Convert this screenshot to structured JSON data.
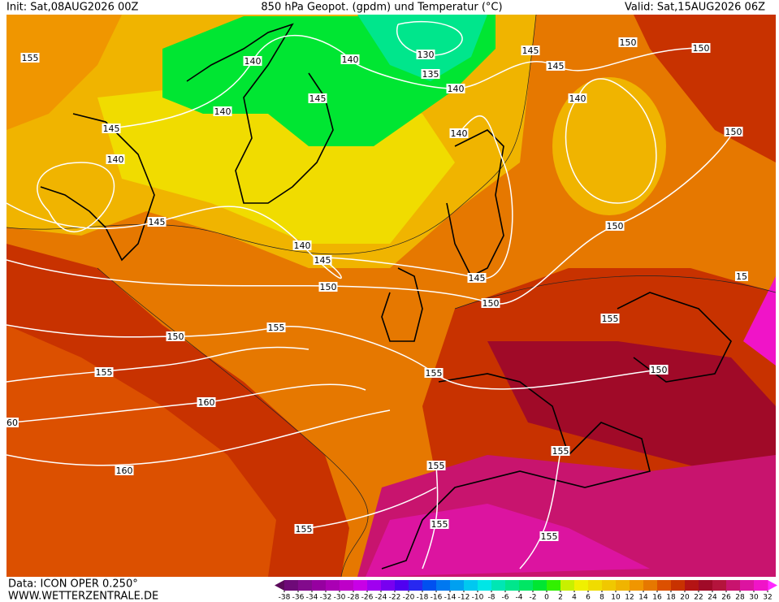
{
  "header": {
    "init": "Init: Sat,08AUG2026 00Z",
    "title": "850 hPa Geopot. (gpdm) und Temperatur (°C)",
    "valid": "Valid: Sat,15AUG2026 06Z"
  },
  "map": {
    "geopotential_labels": [
      155,
      140,
      140,
      130,
      135,
      140,
      145,
      145,
      150,
      150,
      145,
      140,
      140,
      140,
      145,
      150,
      140,
      145,
      150,
      140,
      145,
      145,
      150,
      15,
      150,
      155,
      150,
      155,
      155,
      155,
      150,
      160,
      60,
      155,
      155,
      160,
      155,
      155,
      155
    ],
    "colorbar": {
      "ticks": [
        -38,
        -36,
        -34,
        -32,
        -30,
        -28,
        -26,
        -24,
        -22,
        -20,
        -18,
        -16,
        -14,
        -12,
        -10,
        -8,
        -6,
        -4,
        -2,
        0,
        2,
        4,
        6,
        8,
        10,
        12,
        14,
        16,
        18,
        20,
        22,
        24,
        26,
        28,
        30,
        32
      ],
      "colors": [
        "#5a0a5a",
        "#6e0a78",
        "#820a8c",
        "#9600a0",
        "#aa00b4",
        "#be00c8",
        "#c800e6",
        "#a000f0",
        "#7800f0",
        "#5000f0",
        "#2828f0",
        "#0050f0",
        "#0078f0",
        "#00a0f0",
        "#00c8f0",
        "#00e6e6",
        "#00e6b4",
        "#00e68c",
        "#00e664",
        "#00e632",
        "#32f000",
        "#c8f000",
        "#f0f000",
        "#f0dc00",
        "#f0c800",
        "#f0b400",
        "#f09600",
        "#e67800",
        "#dc5000",
        "#c83200",
        "#b41414",
        "#a00a28",
        "#b4143c",
        "#c8146e",
        "#dc14a0",
        "#f014c8",
        "#ff28ff"
      ]
    }
  },
  "footer": {
    "data": "Data: ICON OPER 0.250°",
    "site": "WWW.WETTERZENTRALE.DE"
  }
}
